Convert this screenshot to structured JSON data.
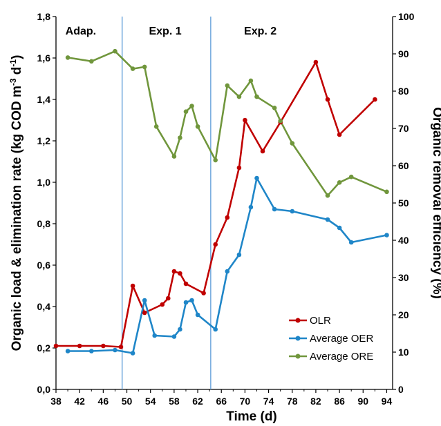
{
  "chart_data": {
    "type": "line",
    "xlabel": "Time (d)",
    "ylabel_parts": [
      "Organic load & elimination rate (kg COD m",
      "-3",
      " d",
      "-1",
      ")"
    ],
    "y2label": "Organic removal efficiency (%)",
    "xlim": [
      38,
      95
    ],
    "xticks": [
      "38",
      "42",
      "46",
      "50",
      "54",
      "58",
      "62",
      "66",
      "70",
      "74",
      "78",
      "82",
      "86",
      "90",
      "94"
    ],
    "ylim": [
      0,
      1.8
    ],
    "yticks": [
      "0,0",
      "0,2",
      "0,4",
      "0,6",
      "0,8",
      "1,0",
      "1,2",
      "1,4",
      "1,6",
      "1,8"
    ],
    "y2lim": [
      0,
      100
    ],
    "y2ticks": [
      "0",
      "10",
      "20",
      "30",
      "40",
      "50",
      "60",
      "70",
      "80",
      "90",
      "100"
    ],
    "phase_boundaries": [
      49.2,
      64.2
    ],
    "phase_labels": [
      {
        "text": "Adap.",
        "x": 42.2
      },
      {
        "text": "Exp. 1",
        "x": 56.5
      },
      {
        "text": "Exp. 2",
        "x": 72.6
      }
    ],
    "series": [
      {
        "name": "OLR",
        "color": "#C00000",
        "axis": "left",
        "x": [
          38,
          42,
          46,
          49,
          51,
          53,
          56,
          57,
          58,
          59,
          60,
          63,
          65,
          67,
          69,
          70,
          73,
          76,
          82,
          84,
          86,
          92
        ],
        "y": [
          0.21,
          0.21,
          0.21,
          0.205,
          0.5,
          0.37,
          0.41,
          0.44,
          0.57,
          0.56,
          0.51,
          0.465,
          0.7,
          0.83,
          1.07,
          1.3,
          1.15,
          1.29,
          1.58,
          1.4,
          1.23,
          1.4
        ]
      },
      {
        "name": "Average OER",
        "color": "#1F86C8",
        "axis": "left",
        "x": [
          40,
          44,
          48,
          51,
          53,
          54.7,
          58,
          59,
          60,
          61,
          62,
          65,
          67,
          69,
          71,
          72,
          75,
          78,
          84,
          86,
          88,
          94
        ],
        "y": [
          0.185,
          0.185,
          0.19,
          0.175,
          0.43,
          0.26,
          0.255,
          0.29,
          0.42,
          0.43,
          0.36,
          0.29,
          0.57,
          0.65,
          0.88,
          1.02,
          0.87,
          0.86,
          0.82,
          0.78,
          0.71,
          0.745
        ]
      },
      {
        "name": "Average ORE",
        "color": "#70963C",
        "axis": "right",
        "x": [
          40,
          44,
          48,
          51,
          53,
          55,
          58,
          59,
          60,
          61,
          62,
          65,
          67,
          69,
          71,
          72,
          75,
          76,
          78,
          84,
          86,
          88,
          94
        ],
        "y": [
          89,
          88,
          90.7,
          86,
          86.5,
          70.5,
          62.5,
          67.5,
          74.5,
          76,
          70.5,
          61.5,
          81.5,
          78.5,
          82.8,
          78.5,
          75.5,
          72,
          66,
          52,
          55.5,
          57,
          53
        ]
      }
    ]
  }
}
